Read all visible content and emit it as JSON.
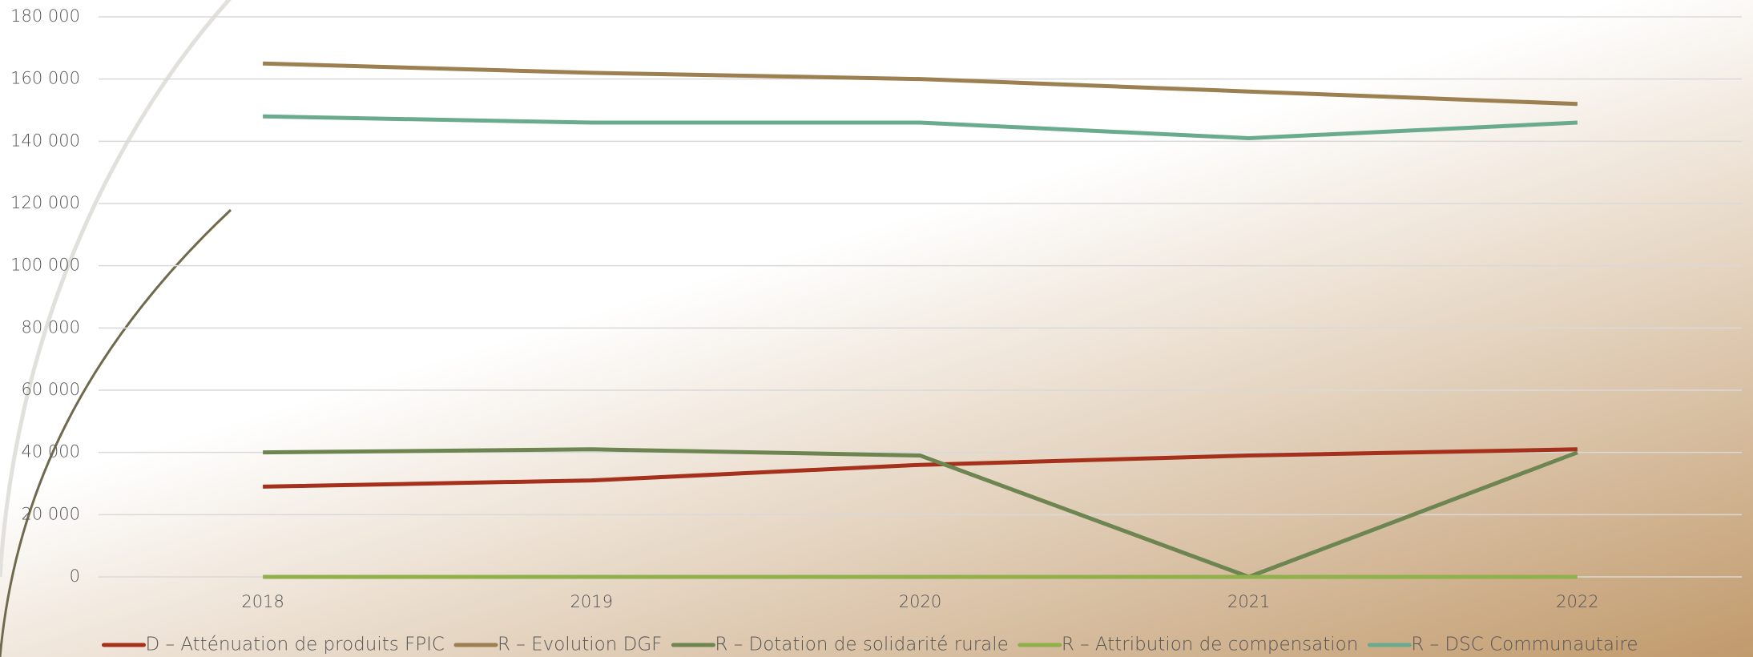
{
  "chart_data": {
    "type": "line",
    "categories": [
      "2018",
      "2019",
      "2020",
      "2021",
      "2022"
    ],
    "series": [
      {
        "name": "D – Atténuation de produits FPIC",
        "color": "#a5301b",
        "values": [
          29000,
          31000,
          36000,
          39000,
          41000
        ]
      },
      {
        "name": "R – Evolution DGF",
        "color": "#9c8051",
        "values": [
          165000,
          162000,
          160000,
          156000,
          152000
        ]
      },
      {
        "name": "R – Dotation de solidarité rurale",
        "color": "#6d8550",
        "values": [
          40000,
          41000,
          39000,
          0,
          40000
        ]
      },
      {
        "name": "R – Attribution de compensation",
        "color": "#8fb04a",
        "values": [
          0,
          0,
          0,
          0,
          0
        ]
      },
      {
        "name": "R – DSC Communautaire",
        "color": "#6aab8e",
        "values": [
          148000,
          146000,
          146000,
          141000,
          146000
        ]
      }
    ],
    "ylim": [
      0,
      180000
    ],
    "yticks": [
      0,
      {
        "value": 20000,
        "label": "20 000"
      },
      {
        "value": 40000,
        "label": "40 000"
      },
      {
        "value": 60000,
        "label": "60 000"
      },
      {
        "value": 80000,
        "label": "80 000"
      },
      {
        "value": 100000,
        "label": "100 000"
      },
      {
        "value": 120000,
        "label": "120 000"
      },
      {
        "value": 140000,
        "label": "140 000"
      },
      {
        "value": 160000,
        "label": "160 000"
      },
      {
        "value": 180000,
        "label": "180 000"
      }
    ],
    "grid": true,
    "legend": "bottom"
  }
}
